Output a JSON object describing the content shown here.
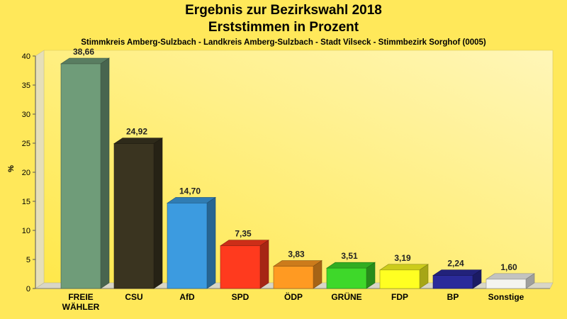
{
  "chart_data": {
    "type": "bar",
    "title": "Ergebnis zur Bezirkswahl 2018",
    "subtitle": "Erststimmen in Prozent",
    "caption": "Stimmkreis Amberg-Sulzbach - Landkreis Amberg-Sulzbach - Stadt Vilseck - Stimmbezirk Sorghof (0005)",
    "ylabel": "%",
    "xlabel": "",
    "ylim": [
      0,
      40
    ],
    "yticks": [
      0,
      5,
      10,
      15,
      20,
      25,
      30,
      35,
      40
    ],
    "grid": false,
    "categories": [
      "FREIE WÄHLER",
      "CSU",
      "AfD",
      "SPD",
      "ÖDP",
      "GRÜNE",
      "FDP",
      "BP",
      "Sonstige"
    ],
    "category_lines": [
      [
        "FREIE",
        "WÄHLER"
      ],
      [
        "CSU"
      ],
      [
        "AfD"
      ],
      [
        "SPD"
      ],
      [
        "ÖDP"
      ],
      [
        "GRÜNE"
      ],
      [
        "FDP"
      ],
      [
        "BP"
      ],
      [
        "Sonstige"
      ]
    ],
    "values": [
      38.66,
      24.92,
      14.7,
      7.35,
      3.83,
      3.51,
      3.19,
      2.24,
      1.6
    ],
    "value_labels": [
      "38,66",
      "24,92",
      "14,70",
      "7,35",
      "3,83",
      "3,51",
      "3,19",
      "2,24",
      "1,60"
    ],
    "colors": [
      "#6f9c79",
      "#3a3420",
      "#3c9be0",
      "#ff3a1e",
      "#ff9a22",
      "#3ed82a",
      "#ffff22",
      "#2a2a9a",
      "#f4f4f0"
    ]
  }
}
